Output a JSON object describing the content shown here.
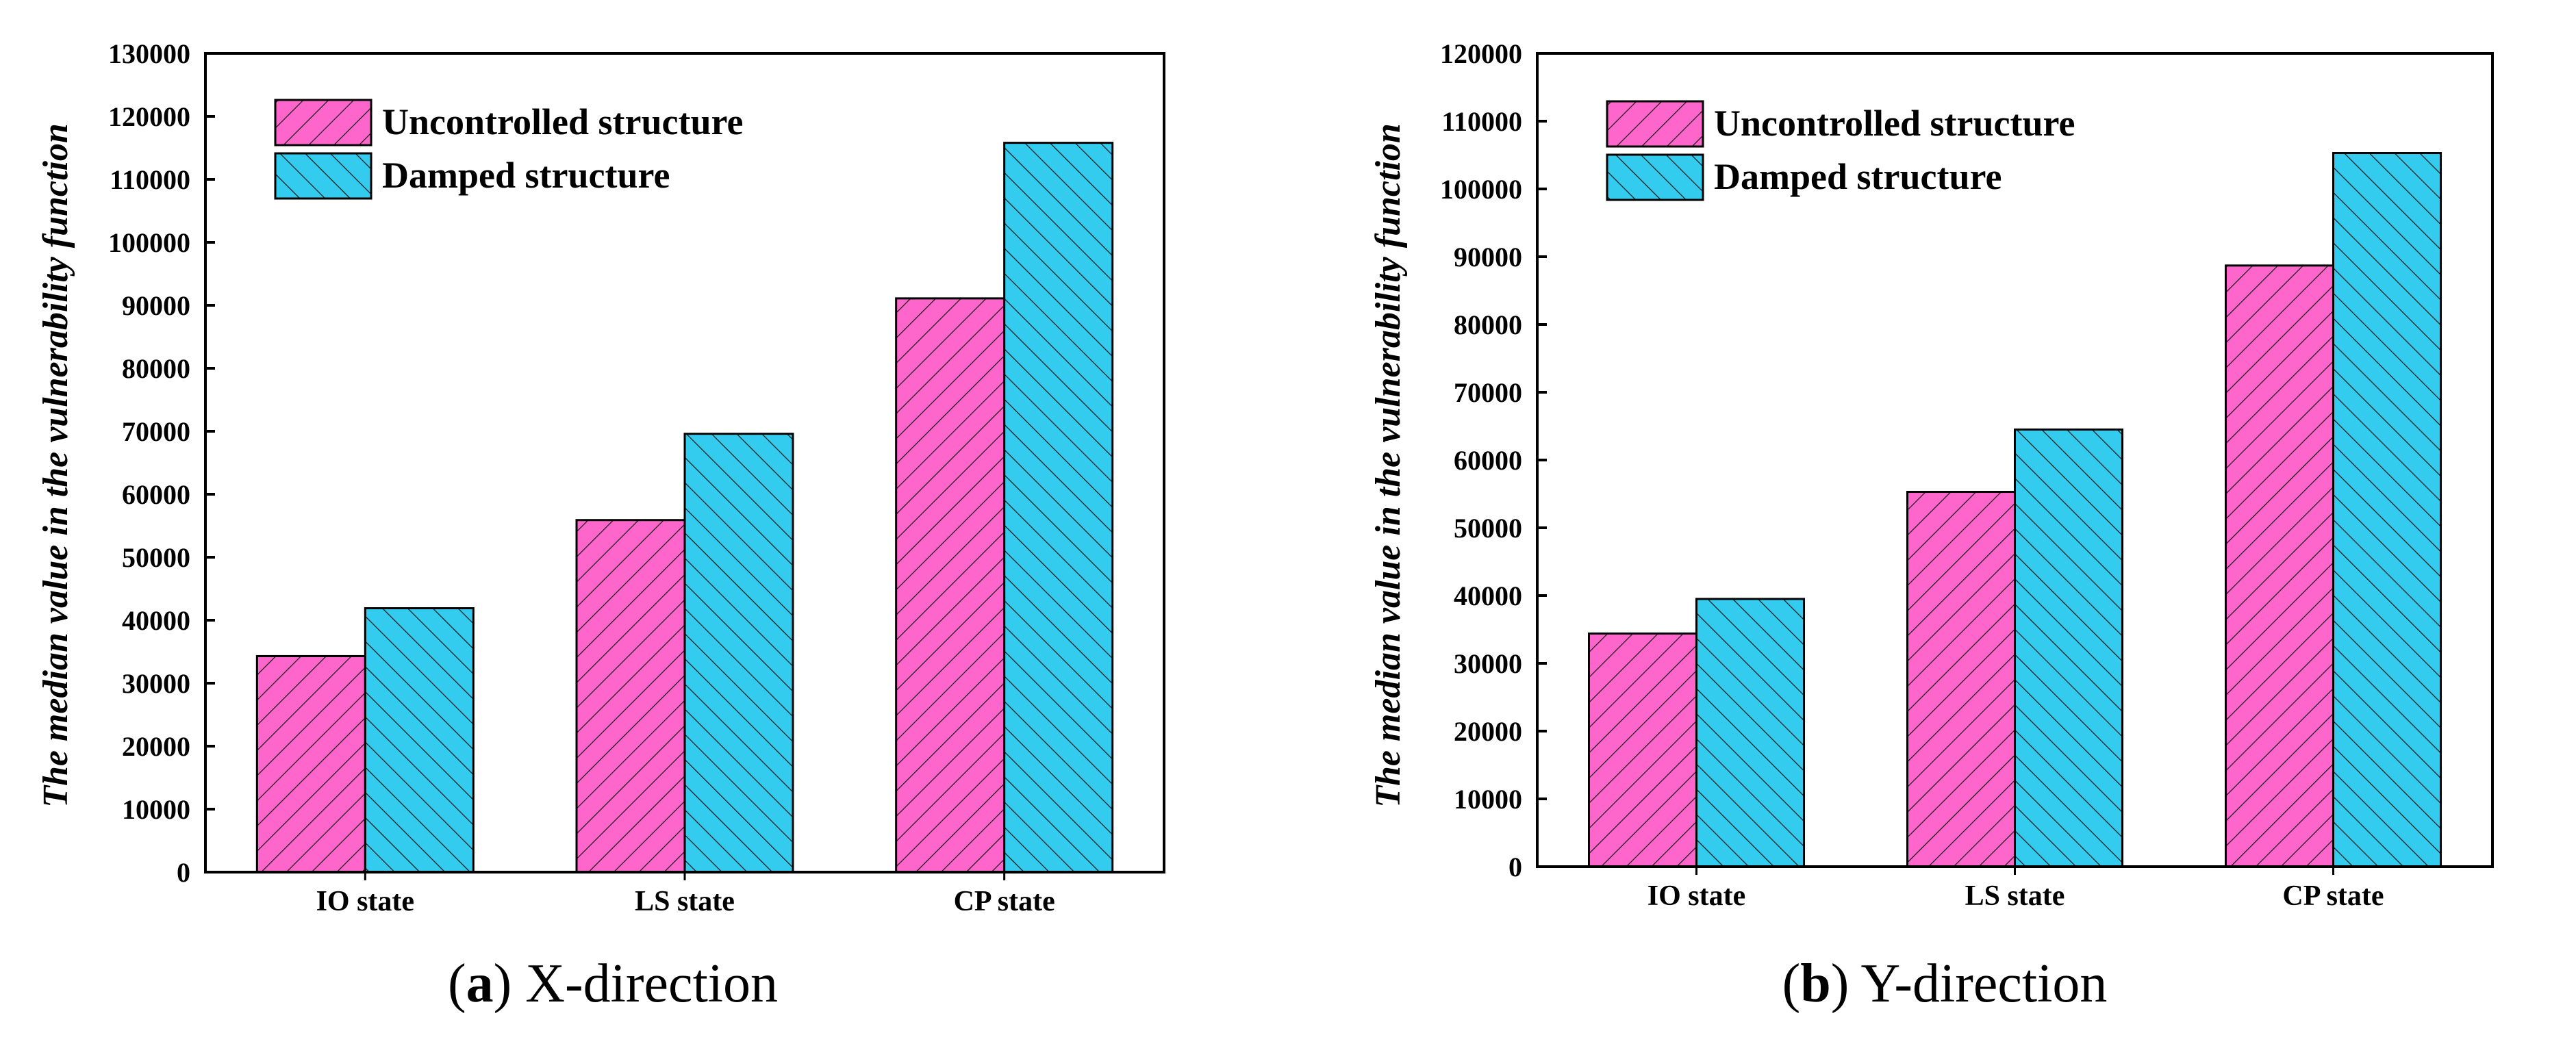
{
  "colors": {
    "uncontrolled": "#ff66cc",
    "damped": "#33ccee",
    "hatch": "#1a1a1a",
    "axis": "#000000"
  },
  "chart_data": [
    {
      "type": "bar",
      "panel_letter": "a",
      "caption": "X-direction",
      "ylabel": "The median value in the vulnerability function",
      "xlabel": "",
      "ylim": [
        0,
        130000
      ],
      "ytick_step": 10000,
      "categories": [
        "IO state",
        "LS state",
        "CP state"
      ],
      "series": [
        {
          "name": "Uncontrolled structure",
          "values": [
            34300,
            55900,
            91100
          ]
        },
        {
          "name": "Damped structure",
          "values": [
            41900,
            69600,
            115800
          ]
        }
      ],
      "legend": "top-left",
      "grid": false
    },
    {
      "type": "bar",
      "panel_letter": "b",
      "caption": "Y-direction",
      "ylabel": "The median value in the vulnerability function",
      "xlabel": "",
      "ylim": [
        0,
        120000
      ],
      "ytick_step": 10000,
      "categories": [
        "IO state",
        "LS state",
        "CP state"
      ],
      "series": [
        {
          "name": "Uncontrolled structure",
          "values": [
            34400,
            55300,
            88700
          ]
        },
        {
          "name": "Damped structure",
          "values": [
            39500,
            64500,
            105300
          ]
        }
      ],
      "legend": "top-left",
      "grid": false
    }
  ]
}
